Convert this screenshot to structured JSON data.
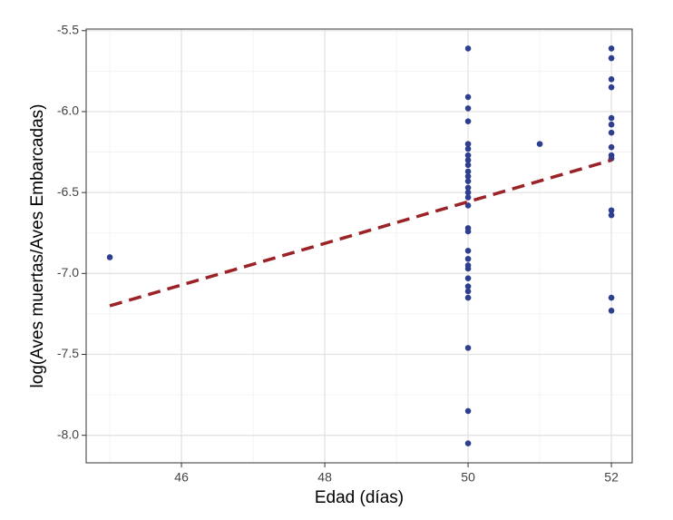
{
  "chart_data": {
    "type": "scatter",
    "xlabel": "Edad (días)",
    "ylabel": "log(Aves muertas/Aves Embarcadas)",
    "x": [
      45,
      50,
      50,
      50,
      50,
      50,
      50,
      50,
      50,
      50,
      50,
      50,
      50,
      50,
      50,
      50,
      50,
      50,
      50,
      50,
      50,
      50,
      50,
      50,
      50,
      50,
      50,
      50,
      50,
      50,
      51,
      52,
      52,
      52,
      52,
      52,
      52,
      52,
      52,
      52,
      52,
      52,
      52,
      52,
      52
    ],
    "y": [
      -6.9,
      -5.61,
      -5.91,
      -5.98,
      -6.06,
      -6.2,
      -6.23,
      -6.27,
      -6.3,
      -6.33,
      -6.37,
      -6.4,
      -6.43,
      -6.47,
      -6.5,
      -6.53,
      -6.58,
      -6.72,
      -6.74,
      -6.86,
      -6.91,
      -6.95,
      -6.97,
      -7.03,
      -7.08,
      -7.11,
      -7.15,
      -7.46,
      -7.85,
      -8.05,
      -6.2,
      -5.61,
      -5.67,
      -5.8,
      -5.85,
      -6.04,
      -6.08,
      -6.13,
      -6.22,
      -6.27,
      -6.29,
      -6.61,
      -6.64,
      -7.15,
      -7.23
    ],
    "color": "#2e3f8f",
    "trend": {
      "x": [
        45,
        52
      ],
      "y": [
        -7.2,
        -6.3
      ],
      "color": "#9b2226",
      "dash": true
    },
    "xlim": [
      44.67,
      52.29
    ],
    "ylim": [
      -8.17,
      -5.49
    ],
    "xticks": [
      46,
      48,
      50,
      52
    ],
    "yticks": [
      {
        "value": -5.5,
        "label": "-5.5"
      },
      {
        "value": -6,
        "label": "-6.0"
      },
      {
        "value": -6.5,
        "label": "-6.5"
      },
      {
        "value": -7,
        "label": "-7.0"
      },
      {
        "value": -7.5,
        "label": "-7.5"
      },
      {
        "value": -8,
        "label": "-8.0"
      }
    ],
    "xminorticks": [
      45,
      47,
      49,
      51
    ],
    "yminorticks": [
      -5.75,
      -6.25,
      -6.75,
      -7.25,
      -7.75
    ],
    "grid": true
  }
}
